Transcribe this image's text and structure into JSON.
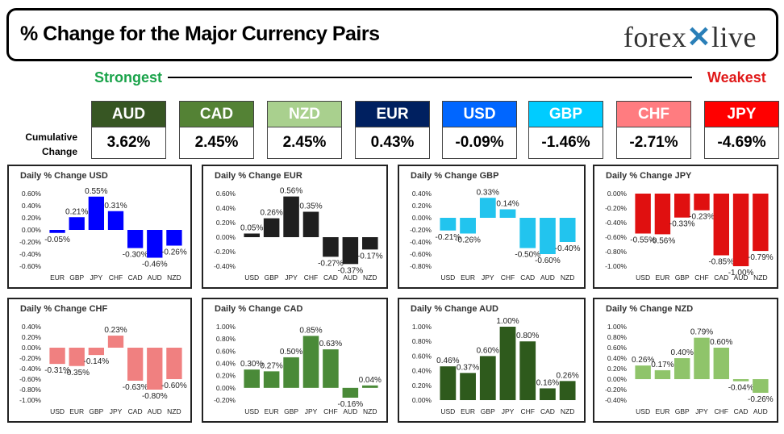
{
  "header": {
    "title": "% Change for the Major Currency Pairs",
    "logo_left": "forex",
    "logo_right": "live"
  },
  "strength_bar": {
    "left_label": "Strongest",
    "right_label": "Weakest"
  },
  "cumulative_label": "Cumulative Change",
  "currencies": [
    {
      "name": "AUD",
      "value": "3.62%",
      "color": "#375623"
    },
    {
      "name": "CAD",
      "value": "2.45%",
      "color": "#548235"
    },
    {
      "name": "NZD",
      "value": "2.45%",
      "color": "#a9d08e"
    },
    {
      "name": "EUR",
      "value": "0.43%",
      "color": "#002060"
    },
    {
      "name": "USD",
      "value": "-0.09%",
      "color": "#0066ff"
    },
    {
      "name": "GBP",
      "value": "-1.46%",
      "color": "#00ccff"
    },
    {
      "name": "CHF",
      "value": "-2.71%",
      "color": "#ff7c80"
    },
    {
      "name": "JPY",
      "value": "-4.69%",
      "color": "#ff0000"
    }
  ],
  "chart_data": [
    {
      "type": "bar",
      "title": "Daily % Change USD",
      "color": "#0000ff",
      "categories": [
        "EUR",
        "GBP",
        "JPY",
        "CHF",
        "CAD",
        "AUD",
        "NZD"
      ],
      "values": [
        -0.05,
        0.21,
        0.55,
        0.31,
        -0.3,
        -0.46,
        -0.26
      ],
      "labels": [
        "-0.05%",
        "0.21%",
        "0.55%",
        "0.31%",
        "-0.30%",
        "-0.46%",
        "-0.26%"
      ],
      "ylim": [
        -0.6,
        0.6
      ],
      "ticks": [
        "0.60%",
        "0.40%",
        "0.20%",
        "0.00%",
        "-0.20%",
        "-0.40%",
        "-0.60%"
      ]
    },
    {
      "type": "bar",
      "title": "Daily % Change EUR",
      "color": "#1f1f1f",
      "categories": [
        "USD",
        "GBP",
        "JPY",
        "CHF",
        "CAD",
        "AUD",
        "NZD"
      ],
      "values": [
        0.05,
        0.26,
        0.56,
        0.35,
        -0.27,
        -0.37,
        -0.17
      ],
      "labels": [
        "0.05%",
        "0.26%",
        "0.56%",
        "0.35%",
        "-0.27%",
        "-0.37%",
        "-0.17%"
      ],
      "ylim": [
        -0.4,
        0.6
      ],
      "ticks": [
        "0.60%",
        "0.40%",
        "0.20%",
        "0.00%",
        "-0.20%",
        "-0.40%"
      ]
    },
    {
      "type": "bar",
      "title": "Daily % Change GBP",
      "color": "#22c4ee",
      "categories": [
        "USD",
        "EUR",
        "JPY",
        "CHF",
        "CAD",
        "AUD",
        "NZD"
      ],
      "values": [
        -0.21,
        -0.26,
        0.33,
        0.14,
        -0.5,
        -0.6,
        -0.4
      ],
      "labels": [
        "-0.21%",
        "-0.26%",
        "0.33%",
        "0.14%",
        "-0.50%",
        "-0.60%",
        "-0.40%"
      ],
      "ylim": [
        -0.8,
        0.4
      ],
      "ticks": [
        "0.40%",
        "0.20%",
        "0.00%",
        "-0.20%",
        "-0.40%",
        "-0.60%",
        "-0.80%"
      ]
    },
    {
      "type": "bar",
      "title": "Daily % Change JPY",
      "color": "#e01010",
      "categories": [
        "USD",
        "EUR",
        "GBP",
        "CHF",
        "CAD",
        "AUD",
        "NZD"
      ],
      "values": [
        -0.55,
        -0.56,
        -0.33,
        -0.23,
        -0.85,
        -1.0,
        -0.79
      ],
      "labels": [
        "-0.55%",
        "-0.56%",
        "-0.33%",
        "-0.23%",
        "-0.85%",
        "-1.00%",
        "-0.79%"
      ],
      "ylim": [
        -1.0,
        0.0
      ],
      "ticks": [
        "0.00%",
        "-0.20%",
        "-0.40%",
        "-0.60%",
        "-0.80%",
        "-1.00%"
      ]
    },
    {
      "type": "bar",
      "title": "Daily % Change CHF",
      "color": "#f08080",
      "categories": [
        "USD",
        "EUR",
        "GBP",
        "JPY",
        "CAD",
        "AUD",
        "NZD"
      ],
      "values": [
        -0.31,
        -0.35,
        -0.14,
        0.23,
        -0.63,
        -0.8,
        -0.6
      ],
      "labels": [
        "-0.31%",
        "-0.35%",
        "-0.14%",
        "0.23%",
        "-0.63%",
        "-0.80%",
        "-0.60%"
      ],
      "ylim": [
        -1.0,
        0.4
      ],
      "ticks": [
        "0.40%",
        "0.20%",
        "0.00%",
        "-0.20%",
        "-0.40%",
        "-0.60%",
        "-0.80%",
        "-1.00%"
      ]
    },
    {
      "type": "bar",
      "title": "Daily % Change CAD",
      "color": "#4a8a38",
      "categories": [
        "USD",
        "EUR",
        "GBP",
        "JPY",
        "CHF",
        "AUD",
        "NZD"
      ],
      "values": [
        0.3,
        0.27,
        0.5,
        0.85,
        0.63,
        -0.16,
        0.04
      ],
      "labels": [
        "0.30%",
        "0.27%",
        "0.50%",
        "0.85%",
        "0.63%",
        "-0.16%",
        "0.04%"
      ],
      "ylim": [
        -0.2,
        1.0
      ],
      "ticks": [
        "1.00%",
        "0.80%",
        "0.60%",
        "0.40%",
        "0.20%",
        "0.00%",
        "-0.20%"
      ]
    },
    {
      "type": "bar",
      "title": "Daily % Change AUD",
      "color": "#2e5a1c",
      "categories": [
        "USD",
        "EUR",
        "GBP",
        "JPY",
        "CHF",
        "CAD",
        "NZD"
      ],
      "values": [
        0.46,
        0.37,
        0.6,
        1.0,
        0.8,
        0.16,
        0.26
      ],
      "labels": [
        "0.46%",
        "0.37%",
        "0.60%",
        "1.00%",
        "0.80%",
        "0.16%",
        "0.26%"
      ],
      "ylim": [
        0.0,
        1.0
      ],
      "ticks": [
        "1.00%",
        "0.80%",
        "0.60%",
        "0.40%",
        "0.20%",
        "0.00%"
      ]
    },
    {
      "type": "bar",
      "title": "Daily % Change NZD",
      "color": "#8fc46a",
      "categories": [
        "USD",
        "EUR",
        "GBP",
        "JPY",
        "CHF",
        "CAD",
        "AUD"
      ],
      "values": [
        0.26,
        0.17,
        0.4,
        0.79,
        0.6,
        -0.04,
        -0.26
      ],
      "labels": [
        "0.26%",
        "0.17%",
        "0.40%",
        "0.79%",
        "0.60%",
        "-0.04%",
        "-0.26%"
      ],
      "ylim": [
        -0.4,
        1.0
      ],
      "ticks": [
        "1.00%",
        "0.80%",
        "0.60%",
        "0.40%",
        "0.20%",
        "0.00%",
        "-0.20%",
        "-0.40%"
      ]
    }
  ]
}
